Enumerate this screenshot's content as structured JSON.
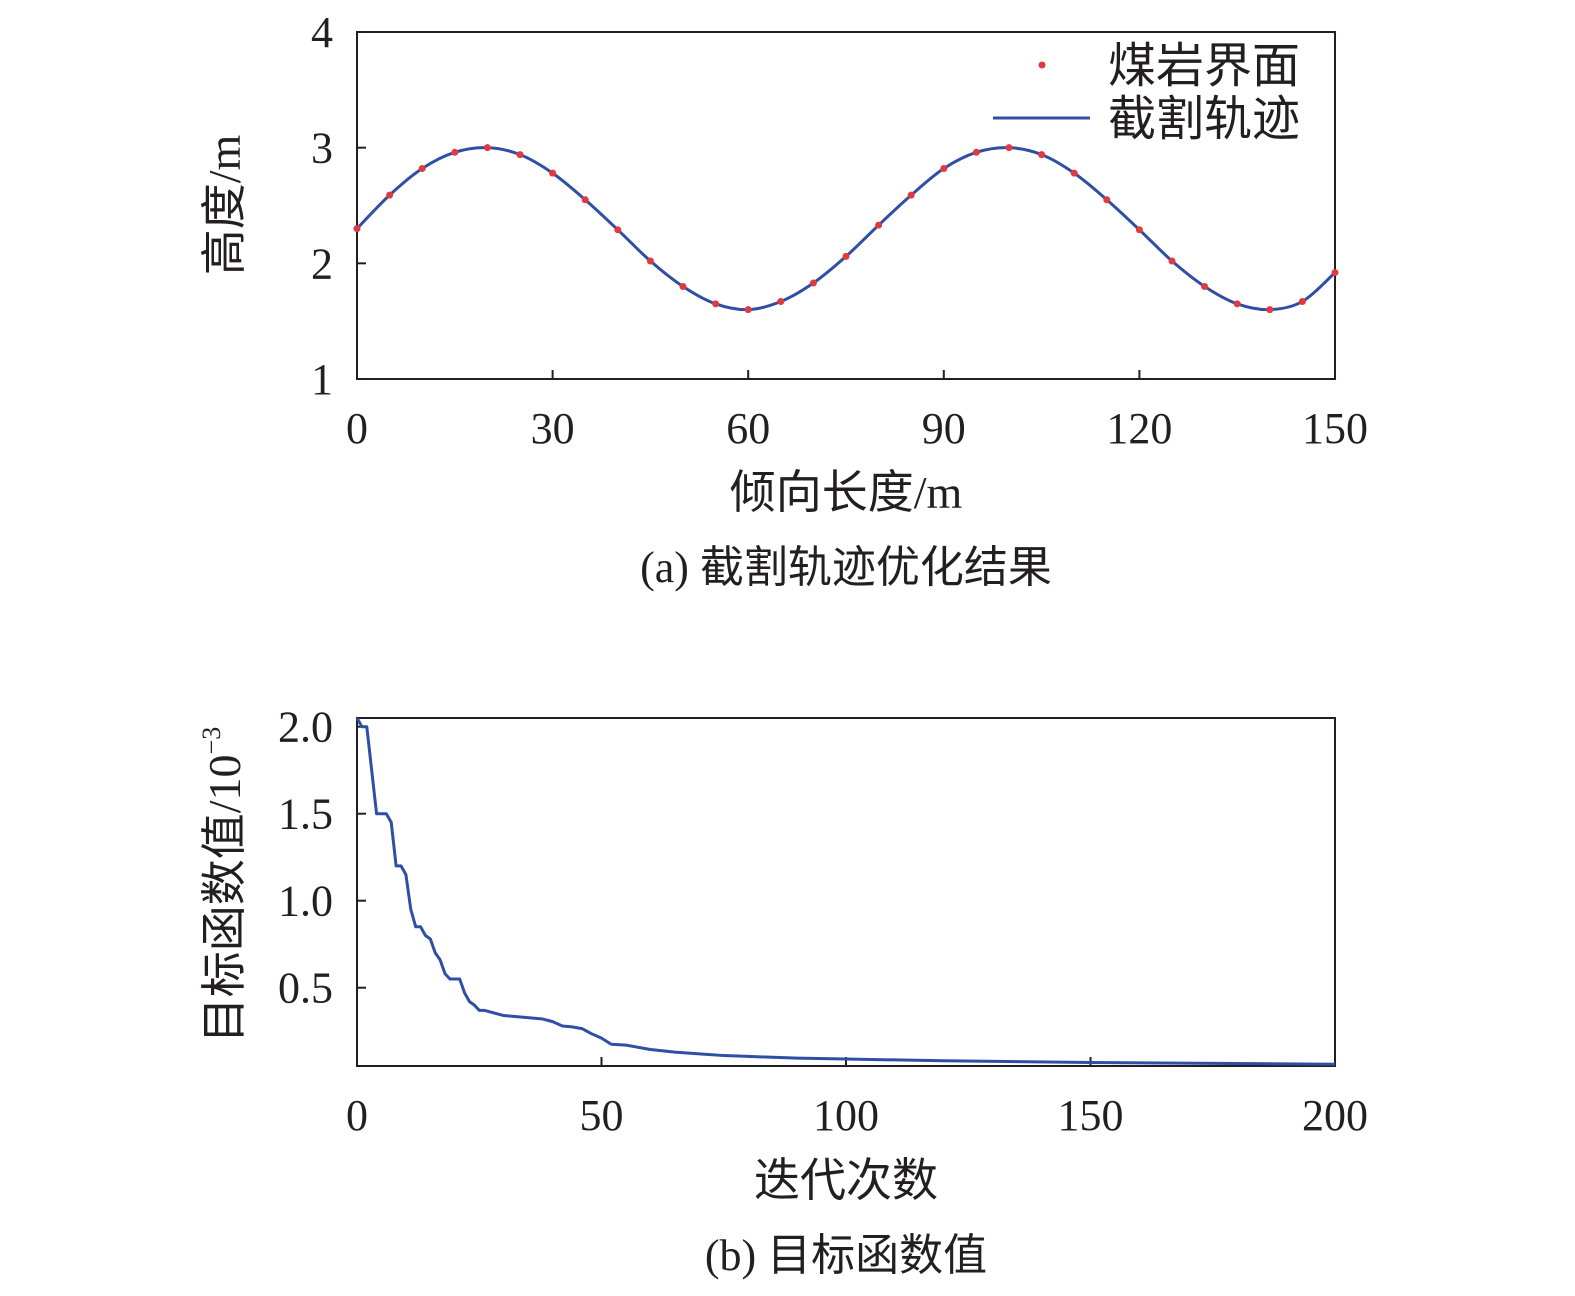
{
  "chart_data": [
    {
      "type": "line",
      "caption": "(a) 截割轨迹优化结果",
      "xlabel": "倾向长度/m",
      "ylabel": "高度/m",
      "xlim": [
        0,
        150
      ],
      "ylim": [
        1,
        4
      ],
      "xticks": [
        "0",
        "30",
        "60",
        "90",
        "120",
        "150"
      ],
      "yticks": [
        "1",
        "2",
        "3",
        "4"
      ],
      "grid": false,
      "legend_position": "top-right",
      "series": [
        {
          "name": "煤岩界面",
          "kind": "scatter",
          "color": "#e03a3e",
          "x": [
            0,
            5,
            10,
            15,
            20,
            25,
            30,
            35,
            40,
            45,
            50,
            55,
            60,
            65,
            70,
            75,
            80,
            85,
            90,
            95,
            100,
            105,
            110,
            115,
            120,
            125,
            130,
            135,
            140,
            145,
            150
          ],
          "y": [
            2.3,
            2.59,
            2.82,
            2.96,
            3.0,
            2.94,
            2.78,
            2.55,
            2.29,
            2.02,
            1.8,
            1.65,
            1.6,
            1.67,
            1.83,
            2.06,
            2.33,
            2.59,
            2.82,
            2.96,
            3.0,
            2.94,
            2.78,
            2.55,
            2.29,
            2.02,
            1.8,
            1.65,
            1.6,
            1.67,
            1.92
          ]
        },
        {
          "name": "截割轨迹",
          "kind": "line",
          "color": "#2e4fa3",
          "x": [
            0,
            5,
            10,
            15,
            20,
            25,
            30,
            35,
            40,
            45,
            50,
            55,
            60,
            65,
            70,
            75,
            80,
            85,
            90,
            95,
            100,
            105,
            110,
            115,
            120,
            125,
            130,
            135,
            140,
            145,
            150
          ],
          "y": [
            2.3,
            2.59,
            2.82,
            2.96,
            3.0,
            2.94,
            2.78,
            2.55,
            2.29,
            2.02,
            1.8,
            1.65,
            1.6,
            1.67,
            1.83,
            2.06,
            2.33,
            2.59,
            2.82,
            2.96,
            3.0,
            2.94,
            2.78,
            2.55,
            2.29,
            2.02,
            1.8,
            1.65,
            1.6,
            1.67,
            1.92
          ]
        }
      ]
    },
    {
      "type": "line",
      "caption": "(b) 目标函数值",
      "xlabel": "迭代次数",
      "ylabel": "目标函数值/10",
      "ylabel_exponent": "−3",
      "xlim": [
        0,
        200
      ],
      "ylim": [
        0.05,
        2.05
      ],
      "xticks": [
        "0",
        "50",
        "100",
        "150",
        "200"
      ],
      "yticks": [
        "0.5",
        "1.0",
        "1.5",
        "2.0"
      ],
      "ytick_values": [
        0.5,
        1.0,
        1.5,
        2.0
      ],
      "grid": false,
      "series": [
        {
          "kind": "line",
          "color": "#2e4fa3",
          "x": [
            0,
            1,
            2,
            3,
            4,
            5,
            6,
            7,
            8,
            9,
            10,
            11,
            12,
            13,
            14,
            15,
            16,
            17,
            18,
            19,
            20,
            21,
            22,
            23,
            24,
            25,
            26,
            28,
            30,
            32,
            34,
            36,
            38,
            40,
            42,
            44,
            46,
            48,
            50,
            52,
            55,
            58,
            60,
            65,
            70,
            75,
            80,
            90,
            100,
            120,
            150,
            200
          ],
          "y": [
            2.05,
            2.0,
            2.0,
            1.75,
            1.5,
            1.5,
            1.5,
            1.45,
            1.2,
            1.2,
            1.15,
            0.95,
            0.85,
            0.85,
            0.8,
            0.78,
            0.7,
            0.66,
            0.58,
            0.55,
            0.55,
            0.55,
            0.47,
            0.42,
            0.4,
            0.37,
            0.37,
            0.355,
            0.34,
            0.335,
            0.33,
            0.325,
            0.32,
            0.305,
            0.28,
            0.275,
            0.265,
            0.235,
            0.21,
            0.175,
            0.17,
            0.155,
            0.145,
            0.13,
            0.12,
            0.11,
            0.105,
            0.095,
            0.09,
            0.08,
            0.07,
            0.06
          ]
        }
      ]
    }
  ]
}
